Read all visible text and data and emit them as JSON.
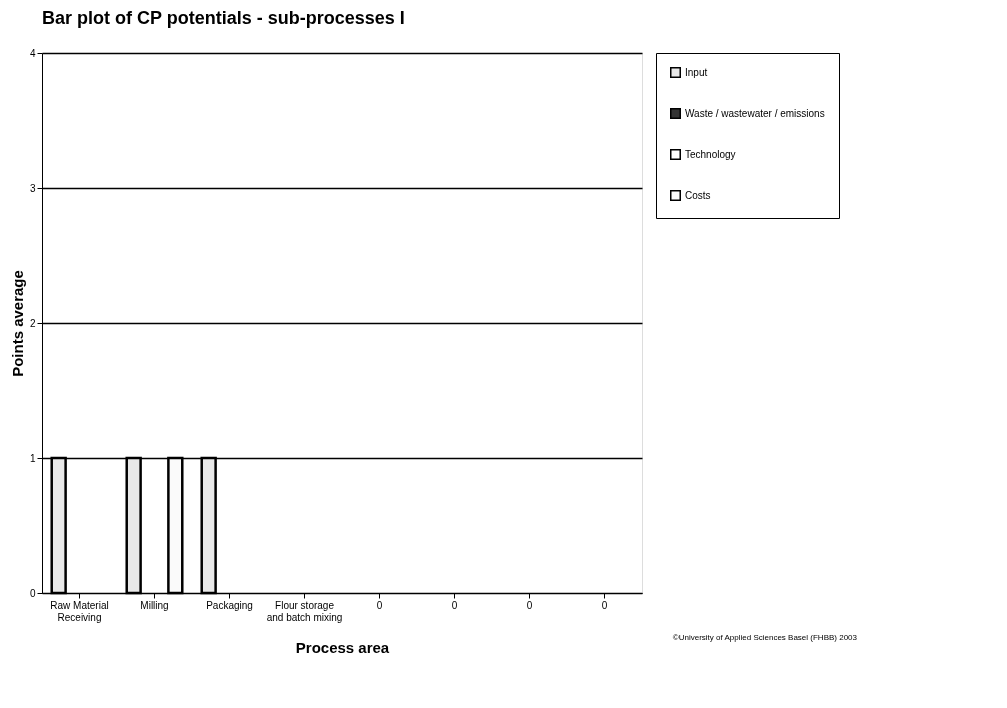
{
  "chart_data": {
    "type": "bar",
    "title": "Bar plot of CP potentials - sub-processes I",
    "xlabel": "Process area",
    "ylabel": "Points average",
    "categories": [
      "Raw Material Receiving",
      "Milling",
      "Packaging",
      "Flour storage and batch mixing",
      "0",
      "0",
      "0",
      "0"
    ],
    "series": [
      {
        "name": "Input",
        "color": "#e8e8e8",
        "values": [
          1,
          1,
          1,
          0,
          0,
          0,
          0,
          0
        ]
      },
      {
        "name": "Waste / wastewater / emissions",
        "color": "#333333",
        "values": [
          0,
          0,
          0,
          0,
          0,
          0,
          0,
          0
        ]
      },
      {
        "name": "Technology",
        "color": "#ffffff",
        "values": [
          0,
          0,
          0,
          0,
          0,
          0,
          0,
          0
        ]
      },
      {
        "name": "Costs",
        "color": "#fafafa",
        "values": [
          0,
          1,
          0,
          0,
          0,
          0,
          0,
          0
        ]
      }
    ],
    "ylim": [
      0,
      4
    ],
    "yticks": [
      0,
      1,
      2,
      3,
      4
    ],
    "grid": "y",
    "legend": "top right",
    "annotations": [
      "©University of Applied Sciences Basel (FHBB) 2003"
    ]
  }
}
